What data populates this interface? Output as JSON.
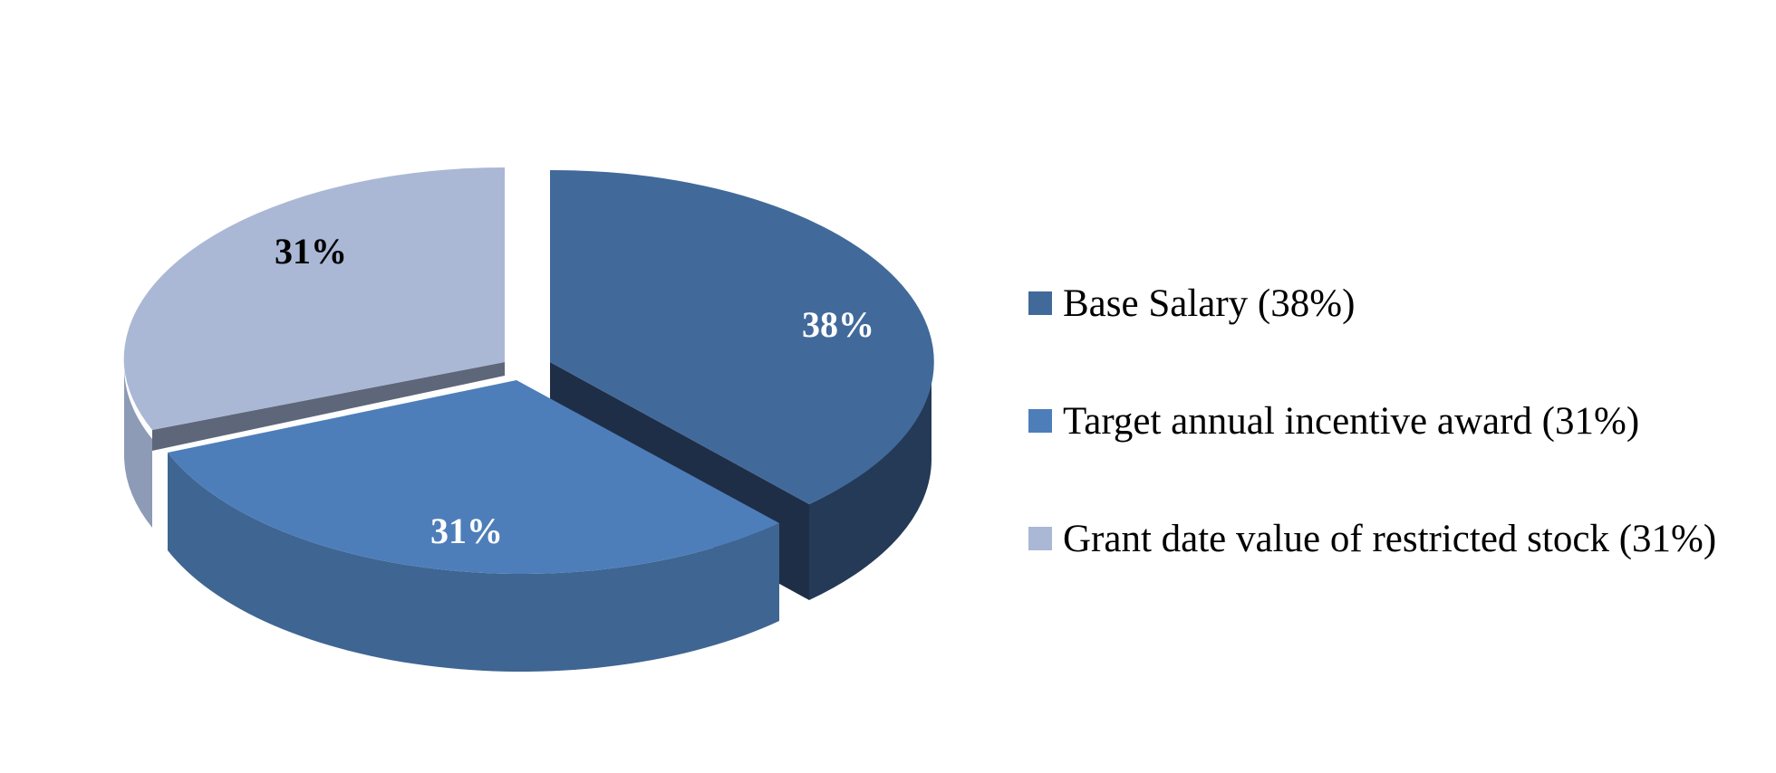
{
  "chart_data": {
    "type": "pie",
    "style": "3d-exploded",
    "slices": [
      {
        "label": "Base Salary (38%)",
        "value": 38,
        "data_label": "38%",
        "color": "#416A9B",
        "label_color": "#FFFFFF"
      },
      {
        "label": "Target annual incentive award (31%)",
        "value": 31,
        "data_label": "31%",
        "color": "#4D7EBA",
        "label_color": "#FFFFFF"
      },
      {
        "label": "Grant date value of restricted stock (31%)",
        "value": 31,
        "data_label": "31%",
        "color": "#AAB8D5",
        "label_color": "#000000"
      }
    ],
    "legend_position": "right"
  }
}
